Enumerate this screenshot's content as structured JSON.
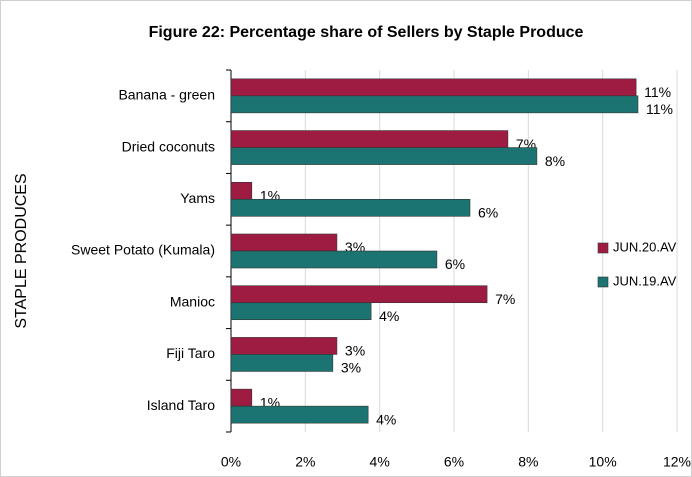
{
  "chart_data": {
    "type": "hbar",
    "title": "Figure 22: Percentage share of Sellers by Staple Produce",
    "y_label": "STAPLE PRODUCES",
    "categories": [
      "Banana - green",
      "Dried coconuts",
      "Yams",
      "Sweet Potato (Kumala)",
      "Manioc",
      "Fiji Taro",
      "Island Taro"
    ],
    "series": [
      {
        "name": "JUN.20.AV",
        "color": "#9e1b42",
        "values": [
          10.9,
          7.45,
          0.56,
          2.85,
          6.89,
          2.85,
          0.56
        ],
        "value_labels": [
          "11%",
          "7%",
          "1%",
          "3%",
          "7%",
          "3%",
          "1%"
        ]
      },
      {
        "name": "JUN.19.AV",
        "color": "#1b7471",
        "values": [
          10.95,
          8.23,
          6.43,
          5.54,
          3.77,
          2.74,
          3.69
        ],
        "value_labels": [
          "11%",
          "8%",
          "6%",
          "6%",
          "4%",
          "3%",
          "4%"
        ]
      }
    ],
    "xlim": [
      0,
      12
    ],
    "xticks": [
      {
        "value": 0,
        "label": "0%"
      },
      {
        "value": 2,
        "label": "2%"
      },
      {
        "value": 4,
        "label": "4%"
      },
      {
        "value": 6,
        "label": "6%"
      },
      {
        "value": 8,
        "label": "8%"
      },
      {
        "value": 10,
        "label": "10%"
      },
      {
        "value": 12,
        "label": "12%"
      }
    ],
    "grid": true,
    "legend": "right"
  }
}
